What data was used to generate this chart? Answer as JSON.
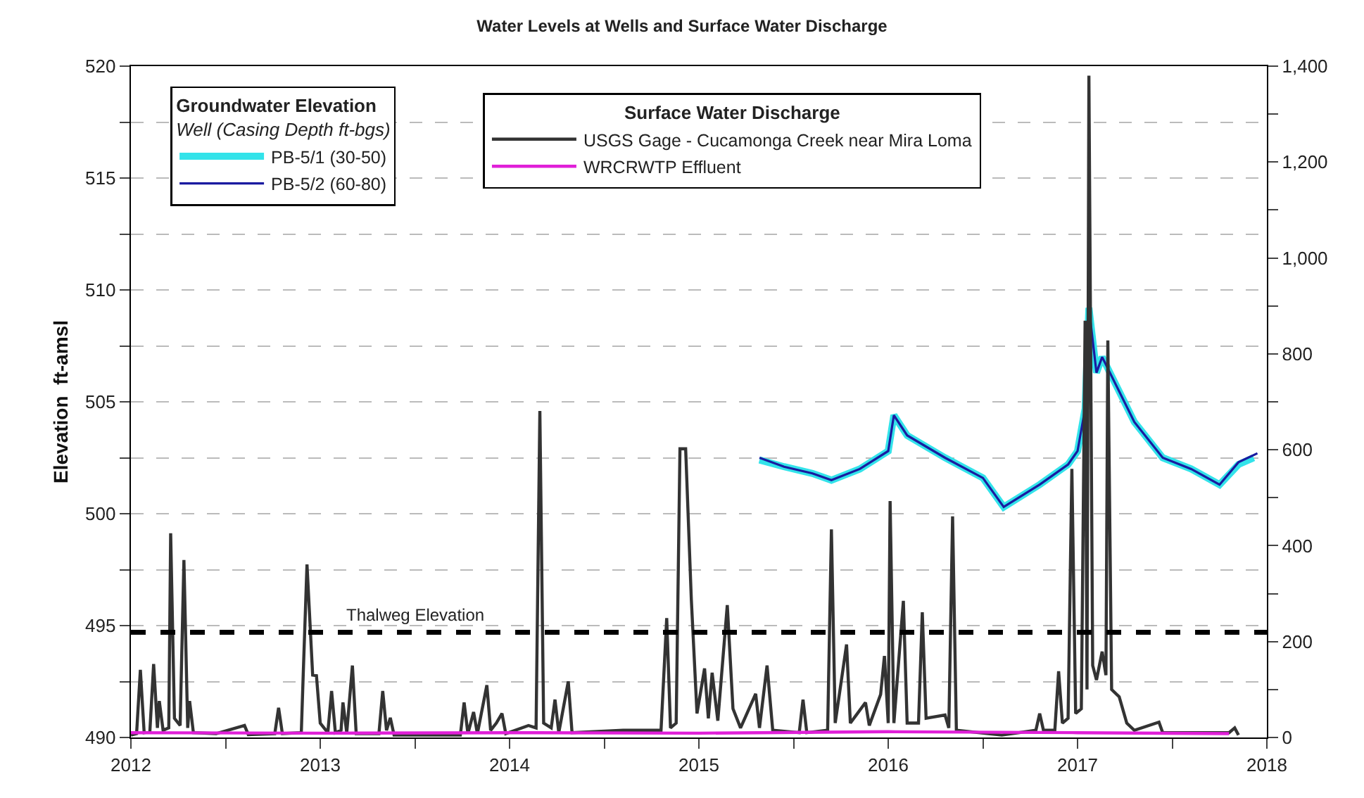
{
  "chart_data": {
    "type": "line",
    "title": "Water Levels at Wells and Surface Water Discharge",
    "ylabel": "Elevation  ft-amsl",
    "legend_title": [
      "Groundwater Elevation\nWell (Casing Depth ft-bgs)",
      "Surface Water Discharge"
    ],
    "legend": "top left",
    "grid": "y",
    "xlim": [
      2012,
      2018
    ],
    "xticks": [
      2012,
      {
        "value": 2012.5,
        "label": null
      },
      2013,
      {
        "value": 2013.5,
        "label": null
      },
      2014,
      {
        "value": 2014.5,
        "label": null
      },
      2015,
      {
        "value": 2015.5,
        "label": null
      },
      2016,
      {
        "value": 2016.5,
        "label": null
      },
      2017,
      {
        "value": 2017.5,
        "label": null
      },
      2018
    ],
    "ylim": [
      490,
      520
    ],
    "yticks": [
      490,
      {
        "value": 492.5,
        "label": null
      },
      495,
      {
        "value": 497.5,
        "label": null
      },
      500,
      {
        "value": 502.5,
        "label": null
      },
      505,
      {
        "value": 507.5,
        "label": null
      },
      510,
      {
        "value": 512.5,
        "label": null
      },
      515,
      {
        "value": 517.5,
        "label": null
      },
      520
    ],
    "y2lim": [
      0,
      1400
    ],
    "y2ticks": [
      0,
      {
        "value": 100,
        "label": null
      },
      200,
      {
        "value": 300,
        "label": null
      },
      400,
      {
        "value": 500,
        "label": null
      },
      600,
      {
        "value": 700,
        "label": null
      },
      800,
      {
        "value": 900,
        "label": null
      },
      {
        "value": 1000,
        "label": "1,000"
      },
      {
        "value": 1100,
        "label": null
      },
      {
        "value": 1200,
        "label": "1,200"
      },
      {
        "value": 1300,
        "label": null
      },
      {
        "value": 1400,
        "label": "1,400"
      }
    ],
    "series": [
      {
        "name": "PB-5/1 (30-50)",
        "color": "#33e3ea",
        "axis": "y",
        "x": [
          2015.32,
          2015.45,
          2015.6,
          2015.7,
          2015.85,
          2016.0,
          2016.03,
          2016.1,
          2016.3,
          2016.5,
          2016.61,
          2016.8,
          2016.95,
          2017.0,
          2017.04,
          2017.06,
          2017.1,
          2017.13,
          2017.3,
          2017.45,
          2017.6,
          2017.75,
          2017.85,
          2017.93
        ],
        "values": [
          502.4,
          502.1,
          501.8,
          501.5,
          502.0,
          502.8,
          504.4,
          503.5,
          502.5,
          501.6,
          500.3,
          501.3,
          502.2,
          502.8,
          504.7,
          509.2,
          506.3,
          507.0,
          504.1,
          502.5,
          502.0,
          501.3,
          502.2,
          502.5
        ]
      },
      {
        "name": "PB-5/2 (60-80)",
        "color": "#1a1aa0",
        "axis": "y",
        "x": [
          2015.32,
          2015.45,
          2015.6,
          2015.7,
          2015.85,
          2016.0,
          2016.03,
          2016.1,
          2016.3,
          2016.5,
          2016.61,
          2016.8,
          2016.95,
          2017.0,
          2017.04,
          2017.06,
          2017.1,
          2017.13,
          2017.3,
          2017.45,
          2017.6,
          2017.75,
          2017.85,
          2017.95
        ],
        "values": [
          502.5,
          502.1,
          501.8,
          501.5,
          502.0,
          502.8,
          504.4,
          503.5,
          502.5,
          501.6,
          500.3,
          501.3,
          502.2,
          502.8,
          504.7,
          509.2,
          506.3,
          507.0,
          504.1,
          502.5,
          502.0,
          501.3,
          502.3,
          502.7
        ]
      },
      {
        "name": "USGS Gage - Cucamonga Creek near Mira Loma",
        "color": "#333333",
        "axis": "y2",
        "x": [
          2012.0,
          2012.03,
          2012.05,
          2012.07,
          2012.1,
          2012.12,
          2012.14,
          2012.15,
          2012.17,
          2012.2,
          2012.21,
          2012.23,
          2012.26,
          2012.28,
          2012.3,
          2012.31,
          2012.33,
          2012.45,
          2012.6,
          2012.62,
          2012.76,
          2012.78,
          2012.8,
          2012.9,
          2012.91,
          2012.93,
          2012.96,
          2012.98,
          2013.0,
          2013.04,
          2013.06,
          2013.08,
          2013.11,
          2013.12,
          2013.14,
          2013.17,
          2013.19,
          2013.31,
          2013.33,
          2013.35,
          2013.37,
          2013.39,
          2013.74,
          2013.76,
          2013.78,
          2013.81,
          2013.83,
          2013.88,
          2013.9,
          2013.93,
          2013.96,
          2013.98,
          2014.1,
          2014.14,
          2014.16,
          2014.18,
          2014.22,
          2014.24,
          2014.26,
          2014.31,
          2014.33,
          2014.6,
          2014.8,
          2014.83,
          2014.85,
          2014.88,
          2014.9,
          2014.93,
          2014.96,
          2014.99,
          2015.03,
          2015.05,
          2015.07,
          2015.1,
          2015.15,
          2015.18,
          2015.22,
          2015.3,
          2015.32,
          2015.36,
          2015.39,
          2015.53,
          2015.55,
          2015.57,
          2015.68,
          2015.7,
          2015.72,
          2015.78,
          2015.8,
          2015.88,
          2015.9,
          2015.96,
          2015.98,
          2016.0,
          2016.01,
          2016.03,
          2016.08,
          2016.1,
          2016.16,
          2016.18,
          2016.2,
          2016.3,
          2016.32,
          2016.34,
          2016.36,
          2016.6,
          2016.78,
          2016.8,
          2016.82,
          2016.88,
          2016.9,
          2016.92,
          2016.95,
          2016.97,
          2016.99,
          2017.02,
          2017.04,
          2017.05,
          2017.06,
          2017.08,
          2017.1,
          2017.13,
          2017.15,
          2017.16,
          2017.18,
          2017.22,
          2017.26,
          2017.3,
          2017.43,
          2017.45,
          2017.8,
          2017.83,
          2017.85
        ],
        "values": [
          5,
          8,
          141,
          10,
          12,
          153,
          20,
          76,
          15,
          20,
          426,
          40,
          25,
          370,
          20,
          76,
          10,
          8,
          25,
          6,
          8,
          62,
          8,
          10,
          130,
          361,
          130,
          129,
          30,
          10,
          97,
          10,
          15,
          73,
          10,
          150,
          8,
          8,
          97,
          15,
          41,
          5,
          5,
          73,
          8,
          53,
          8,
          109,
          15,
          30,
          50,
          8,
          25,
          20,
          681,
          30,
          20,
          79,
          10,
          117,
          10,
          15,
          15,
          249,
          20,
          30,
          602,
          602,
          288,
          50,
          144,
          40,
          135,
          35,
          276,
          60,
          20,
          91,
          20,
          150,
          15,
          10,
          79,
          10,
          15,
          434,
          30,
          194,
          30,
          73,
          25,
          90,
          170,
          30,
          493,
          30,
          285,
          30,
          30,
          261,
          40,
          47,
          20,
          461,
          15,
          5,
          15,
          50,
          15,
          15,
          138,
          30,
          40,
          560,
          50,
          60,
          869,
          100,
          1380,
          150,
          120,
          179,
          130,
          828,
          100,
          85,
          30,
          15,
          32,
          10,
          10,
          20,
          5
        ]
      },
      {
        "name": "WRCRWTP Effluent",
        "color": "#e020d8",
        "axis": "y2",
        "x": [
          2012.0,
          2013.0,
          2014.0,
          2015.0,
          2016.0,
          2017.0,
          2017.8
        ],
        "values": [
          10,
          9,
          10,
          9,
          12,
          10,
          8
        ]
      }
    ],
    "ref_lines": [
      {
        "axis": "y",
        "value": 494.7,
        "label": "Thalweg Elevation",
        "color": "#000000",
        "line_style": "dashed"
      }
    ]
  }
}
